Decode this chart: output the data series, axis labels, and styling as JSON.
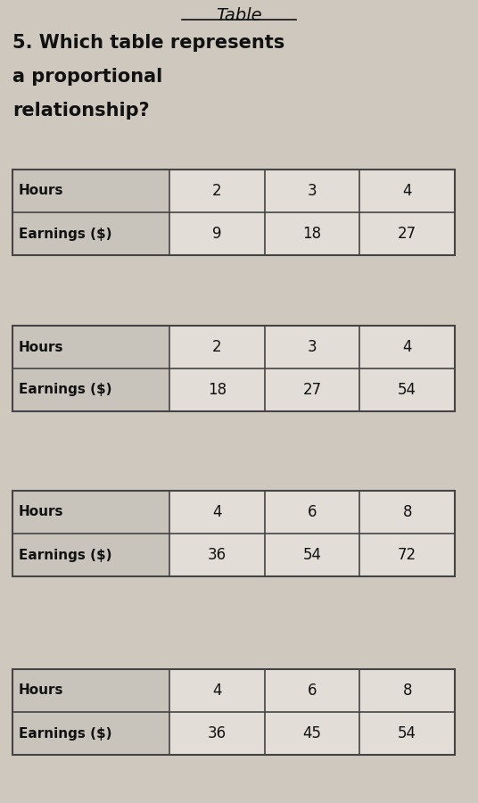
{
  "title_top": "Table",
  "question_lines": [
    "5. Which table represents",
    "a proportional",
    "relationship?"
  ],
  "bg_color": "#cec8be",
  "table_bg": "#e2ddd6",
  "header_bg": "#c8c3bb",
  "border_color": "#444444",
  "text_color": "#111111",
  "tables": [
    {
      "rows": [
        "Hours",
        "Earnings ($)"
      ],
      "cols": [
        "2",
        "3",
        "4"
      ],
      "values": [
        "9",
        "18",
        "27"
      ]
    },
    {
      "rows": [
        "Hours",
        "Earnings ($)"
      ],
      "cols": [
        "2",
        "3",
        "4"
      ],
      "values": [
        "18",
        "27",
        "54"
      ]
    },
    {
      "rows": [
        "Hours",
        "Earnings ($)"
      ],
      "cols": [
        "4",
        "6",
        "8"
      ],
      "values": [
        "36",
        "54",
        "72"
      ]
    },
    {
      "rows": [
        "Hours",
        "Earnings ($)"
      ],
      "cols": [
        "4",
        "6",
        "8"
      ],
      "values": [
        "36",
        "45",
        "54"
      ]
    }
  ],
  "fig_width": 5.36,
  "fig_height": 9.0,
  "dpi": 100
}
